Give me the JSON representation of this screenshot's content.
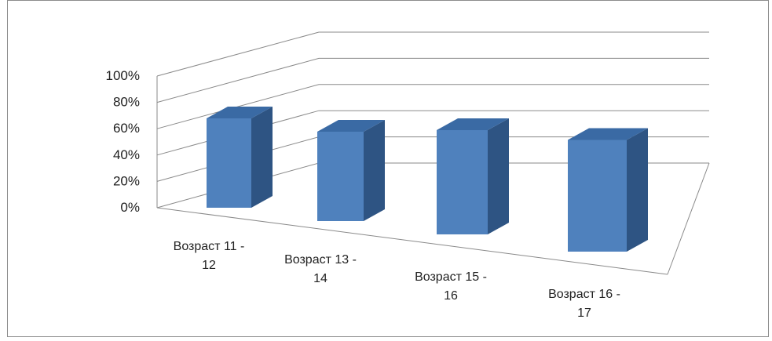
{
  "chart_data": {
    "type": "bar",
    "style": "3d-column",
    "categories": [
      [
        "Возраст 11 -",
        "12"
      ],
      [
        "Возраст 13 -",
        "14"
      ],
      [
        "Возраст 15 -",
        "16"
      ],
      [
        "Возраст 16 -",
        "17"
      ]
    ],
    "series": [
      {
        "values": [
          60,
          60,
          70,
          75
        ]
      }
    ],
    "y_ticks": [
      "0%",
      "20%",
      "40%",
      "60%",
      "80%",
      "100%"
    ],
    "ylim": [
      0,
      100
    ],
    "grid": true,
    "legend": "none",
    "colors": {
      "bar_front": "#4f81bd",
      "bar_side": "#2e5483",
      "bar_top": "#3a6aa4",
      "grid": "#8a8a8a"
    }
  }
}
